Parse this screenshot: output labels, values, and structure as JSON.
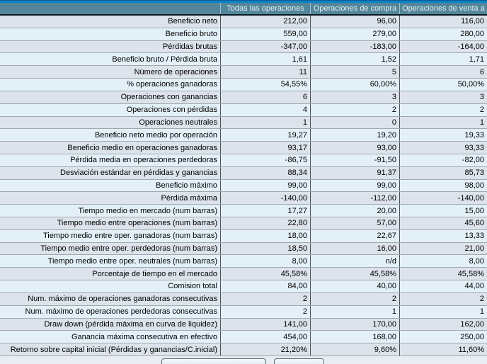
{
  "table": {
    "columns": [
      "Todas las operaciones",
      "Operaciones de compra",
      "Operaciones de venta a"
    ],
    "rows": [
      [
        "Beneficio neto",
        "212,00",
        "96,00",
        "116,00"
      ],
      [
        "Beneficio bruto",
        "559,00",
        "279,00",
        "280,00"
      ],
      [
        "Pérdidas brutas",
        "-347,00",
        "-183,00",
        "-164,00"
      ],
      [
        "Beneficio bruto / Pérdida bruta",
        "1,61",
        "1,52",
        "1,71"
      ],
      [
        "Número de operaciones",
        "11",
        "5",
        "6"
      ],
      [
        "% operaciones ganadoras",
        "54,55%",
        "60,00%",
        "50,00%"
      ],
      [
        "Operaciones con ganancias",
        "6",
        "3",
        "3"
      ],
      [
        "Operaciones con pérdidas",
        "4",
        "2",
        "2"
      ],
      [
        "Operaciones neutrales",
        "1",
        "0",
        "1"
      ],
      [
        "Beneficio neto medio por operación",
        "19,27",
        "19,20",
        "19,33"
      ],
      [
        "Beneficio medio en operaciones ganadoras",
        "93,17",
        "93,00",
        "93,33"
      ],
      [
        "Pérdida media en operaciones perdedoras",
        "-86,75",
        "-91,50",
        "-82,00"
      ],
      [
        "Desviación estándar en pérdidas y ganancias",
        "88,34",
        "91,37",
        "85,73"
      ],
      [
        "Beneficio máximo",
        "99,00",
        "99,00",
        "98,00"
      ],
      [
        "Pérdida máxima",
        "-140,00",
        "-112,00",
        "-140,00"
      ],
      [
        "Tiempo medio en mercado (num barras)",
        "17,27",
        "20,00",
        "15,00"
      ],
      [
        "Tiempo medio entre operaciones (num barras)",
        "22,80",
        "57,00",
        "45,60"
      ],
      [
        "Tiempo medio entre oper. ganadoras (num barras)",
        "18,00",
        "22,67",
        "13,33"
      ],
      [
        "Tiempo medio entre oper. perdedoras (num barras)",
        "18,50",
        "16,00",
        "21,00"
      ],
      [
        "Tiempo medio entre oper. neutrales (num barras)",
        "8,00",
        "n/d",
        "8,00"
      ],
      [
        "Porcentaje de tiempo en el mercado",
        "45,58%",
        "45,58%",
        "45,58%"
      ],
      [
        "Comision total",
        "84,00",
        "40,00",
        "44,00"
      ],
      [
        "Num. máximo de operaciones ganadoras consecutivas",
        "2",
        "2",
        "2"
      ],
      [
        "Num. máximo de operaciones perdedoras consecutivas",
        "2",
        "1",
        "1"
      ],
      [
        "Draw down (pérdida máxima en curva de liquidez)",
        "141,00",
        "170,00",
        "162,00"
      ],
      [
        "Ganancia máxima consecutiva en efectivo",
        "454,00",
        "168,00",
        "250,00"
      ],
      [
        "Retorno sobre capital inicial (Pérdidas y ganancias/C.inicial)",
        "21,20%",
        "9,60%",
        "11,60%"
      ]
    ]
  },
  "colors": {
    "header_bg": "#53869A",
    "header_text": "#E8F0F3",
    "accent_blue": "#0C82C6",
    "top_navy": "#0B5E97",
    "header_border": "#0A1B24",
    "row_shade_gray": "#DCE3EA",
    "row_shade_blue": "#E4F0F8",
    "row_separator": "#A2A8B0",
    "column_separator": "#4A545C"
  }
}
